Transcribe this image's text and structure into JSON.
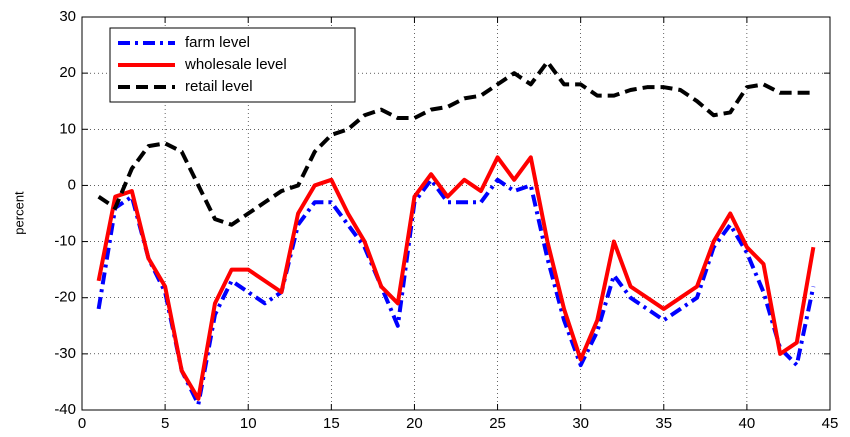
{
  "chart_data": {
    "type": "line",
    "ylabel": "percent",
    "x": [
      1,
      2,
      3,
      4,
      5,
      6,
      7,
      8,
      9,
      10,
      11,
      12,
      13,
      14,
      15,
      16,
      17,
      18,
      19,
      20,
      21,
      22,
      23,
      24,
      25,
      26,
      27,
      28,
      29,
      30,
      31,
      32,
      33,
      34,
      35,
      36,
      37,
      38,
      39,
      40,
      41,
      42,
      43,
      44
    ],
    "series": [
      {
        "name": "farm level",
        "color": "#0000ff",
        "linestyle": "dashdot",
        "values": [
          -22,
          -4,
          -2,
          -13,
          -19,
          -33,
          -39,
          -23,
          -17,
          -19,
          -21,
          -19,
          -7,
          -3,
          -3,
          -7,
          -11,
          -18,
          -25,
          -3,
          1,
          -3,
          -3,
          -3,
          1,
          -1,
          0,
          -13,
          -24,
          -32,
          -26,
          -16,
          -20,
          -22,
          -24,
          -22,
          -20,
          -11,
          -7,
          -12,
          -19,
          -29,
          -32,
          -18
        ]
      },
      {
        "name": "wholesale level",
        "color": "#ff0000",
        "linestyle": "solid",
        "values": [
          -17,
          -2,
          -1,
          -13,
          -18,
          -33,
          -38,
          -21,
          -15,
          -15,
          -17,
          -19,
          -5,
          0,
          1,
          -5,
          -10,
          -18,
          -21,
          -2,
          2,
          -2,
          1,
          -1,
          5,
          1,
          5,
          -10,
          -22,
          -31,
          -24,
          -10,
          -18,
          -20,
          -22,
          -20,
          -18,
          -10,
          -5,
          -11,
          -14,
          -30,
          -28,
          -11
        ]
      },
      {
        "name": "retail level",
        "color": "#000000",
        "linestyle": "dashed",
        "values": [
          -2,
          -4,
          3,
          7,
          7.5,
          6,
          0,
          -6,
          -7,
          -5,
          -3,
          -1,
          0,
          6,
          9,
          10,
          12.5,
          13.5,
          12,
          12,
          13.5,
          14,
          15.5,
          16,
          18,
          20,
          18,
          22,
          18,
          18,
          16,
          16,
          17,
          17.5,
          17.5,
          17,
          15,
          12.5,
          13,
          17.5,
          18,
          16.5,
          16.5,
          16.5
        ]
      }
    ],
    "xlim": [
      0,
      45
    ],
    "xticks": [
      0,
      5,
      10,
      15,
      20,
      25,
      30,
      35,
      40,
      45
    ],
    "ylim": [
      -40,
      30
    ],
    "yticks": [
      -40,
      -30,
      -20,
      -10,
      0,
      10,
      20,
      30
    ],
    "grid": true,
    "legend": "upper left"
  }
}
